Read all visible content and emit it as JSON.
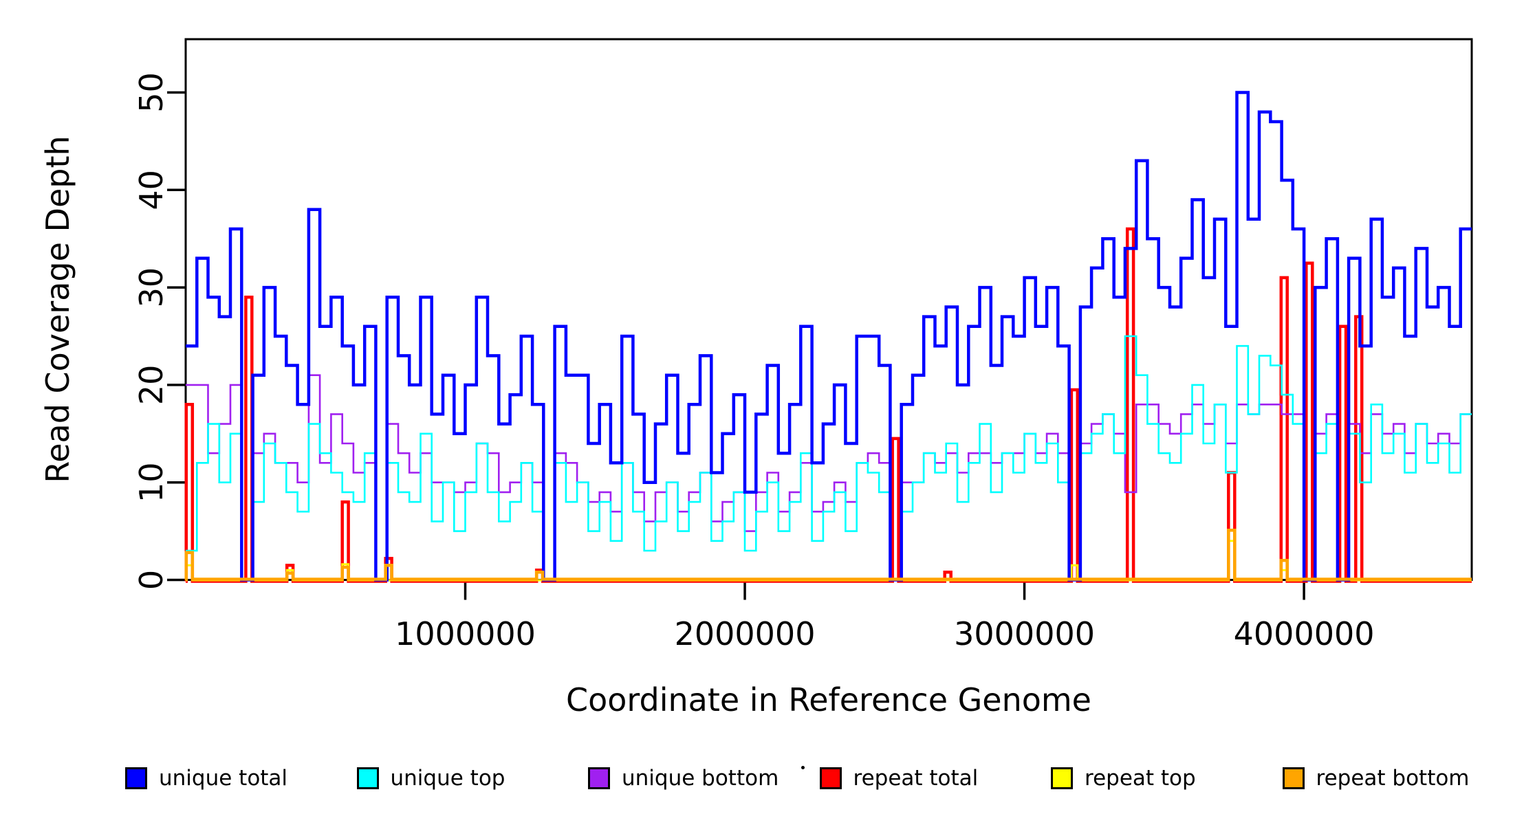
{
  "chart_data": {
    "type": "line",
    "subtype": "step-coverage",
    "title": "",
    "xlabel": "Coordinate in Reference Genome",
    "ylabel": "Read Coverage Depth",
    "xlim": [
      0,
      4600000
    ],
    "ylim": [
      0,
      55
    ],
    "grid": false,
    "legend_position": "bottom",
    "x_ticks": [
      1000000,
      2000000,
      3000000,
      4000000
    ],
    "x_tick_labels": [
      "1000000",
      "2000000",
      "3000000",
      "4000000"
    ],
    "y_ticks": [
      0,
      10,
      20,
      30,
      40,
      50
    ],
    "y_tick_labels": [
      "0",
      "10",
      "20",
      "30",
      "40",
      "50"
    ],
    "x_bin_size": 40000,
    "spike_width": 22000,
    "series": [
      {
        "name": "unique total",
        "color": "#0000FF",
        "stroke": 4.5,
        "kind": "bins",
        "values": [
          24,
          33,
          29,
          27,
          36,
          0,
          21,
          30,
          25,
          22,
          18,
          38,
          26,
          29,
          24,
          20,
          26,
          0,
          29,
          23,
          20,
          29,
          17,
          21,
          15,
          20,
          29,
          23,
          16,
          19,
          25,
          18,
          0,
          26,
          21,
          21,
          14,
          18,
          12,
          25,
          17,
          10,
          16,
          21,
          13,
          18,
          23,
          11,
          15,
          19,
          9,
          17,
          22,
          13,
          18,
          26,
          12,
          16,
          20,
          14,
          25,
          25,
          22,
          0,
          18,
          21,
          27,
          24,
          28,
          20,
          26,
          30,
          22,
          27,
          25,
          31,
          26,
          30,
          24,
          0,
          28,
          32,
          35,
          29,
          34,
          43,
          35,
          30,
          28,
          33,
          39,
          31,
          37,
          26,
          50,
          37,
          48,
          47,
          41,
          36,
          0,
          30,
          35,
          0,
          33,
          24,
          37,
          29,
          32,
          25,
          34,
          28,
          30,
          26,
          36
        ]
      },
      {
        "name": "unique top",
        "color": "#00FFFF",
        "stroke": 2.6,
        "kind": "bins",
        "values": [
          3,
          12,
          16,
          10,
          15,
          0,
          8,
          14,
          12,
          9,
          7,
          16,
          13,
          11,
          9,
          8,
          13,
          0,
          12,
          9,
          8,
          15,
          6,
          10,
          5,
          9,
          14,
          9,
          6,
          8,
          12,
          7,
          0,
          12,
          8,
          10,
          5,
          8,
          4,
          12,
          7,
          3,
          6,
          10,
          5,
          8,
          11,
          4,
          6,
          9,
          3,
          7,
          10,
          5,
          8,
          13,
          4,
          7,
          9,
          5,
          12,
          11,
          9,
          0,
          7,
          10,
          13,
          11,
          14,
          8,
          12,
          16,
          9,
          13,
          11,
          15,
          12,
          14,
          10,
          0,
          13,
          15,
          17,
          13,
          25,
          21,
          16,
          13,
          12,
          15,
          20,
          14,
          18,
          11,
          24,
          17,
          23,
          22,
          19,
          16,
          0,
          13,
          16,
          0,
          15,
          10,
          18,
          13,
          15,
          11,
          16,
          12,
          14,
          11,
          17
        ]
      },
      {
        "name": "unique bottom",
        "color": "#A020F0",
        "stroke": 2.6,
        "kind": "bins",
        "values": [
          20,
          20,
          13,
          16,
          20,
          0,
          13,
          15,
          12,
          12,
          10,
          21,
          12,
          17,
          14,
          11,
          12,
          0,
          16,
          13,
          11,
          13,
          10,
          10,
          9,
          10,
          14,
          13,
          9,
          10,
          12,
          10,
          0,
          13,
          12,
          10,
          8,
          9,
          7,
          12,
          9,
          6,
          9,
          10,
          7,
          9,
          11,
          6,
          8,
          9,
          5,
          9,
          11,
          7,
          9,
          12,
          7,
          8,
          10,
          8,
          12,
          13,
          12,
          0,
          10,
          10,
          13,
          12,
          13,
          11,
          13,
          13,
          12,
          13,
          13,
          15,
          13,
          15,
          13,
          0,
          14,
          16,
          17,
          15,
          9,
          18,
          18,
          16,
          15,
          17,
          18,
          16,
          18,
          14,
          18,
          17,
          18,
          18,
          17,
          17,
          0,
          15,
          17,
          0,
          16,
          13,
          17,
          15,
          16,
          13,
          16,
          14,
          15,
          14,
          17
        ]
      },
      {
        "name": "repeat total",
        "color": "#FF0000",
        "stroke": 4.5,
        "kind": "spikes",
        "baseline": 0,
        "spikes": [
          {
            "x": 2000,
            "v": 18
          },
          {
            "x": 215000,
            "v": 29
          },
          {
            "x": 362000,
            "v": 1.5
          },
          {
            "x": 560000,
            "v": 8
          },
          {
            "x": 715000,
            "v": 2.2
          },
          {
            "x": 1255000,
            "v": 1
          },
          {
            "x": 2528000,
            "v": 14.5
          },
          {
            "x": 2715000,
            "v": 0.8
          },
          {
            "x": 3168000,
            "v": 19.5
          },
          {
            "x": 3368000,
            "v": 36
          },
          {
            "x": 3730000,
            "v": 11
          },
          {
            "x": 3918000,
            "v": 31
          },
          {
            "x": 4008000,
            "v": 32.5
          },
          {
            "x": 4128000,
            "v": 26
          },
          {
            "x": 4185000,
            "v": 27
          }
        ]
      },
      {
        "name": "repeat top",
        "color": "#FFFF00",
        "stroke": 3,
        "kind": "spikes",
        "baseline": 0,
        "spikes": [
          {
            "x": 2000,
            "v": 1.5
          },
          {
            "x": 362000,
            "v": 1
          },
          {
            "x": 560000,
            "v": 1.6
          },
          {
            "x": 3168000,
            "v": 1.5
          },
          {
            "x": 3730000,
            "v": 4
          },
          {
            "x": 3918000,
            "v": 1
          }
        ]
      },
      {
        "name": "repeat bottom",
        "color": "#FFA500",
        "stroke": 4.5,
        "kind": "spikes",
        "baseline": 0,
        "spikes": [
          {
            "x": 2000,
            "v": 2.8
          },
          {
            "x": 362000,
            "v": 0.7
          },
          {
            "x": 560000,
            "v": 1.3
          },
          {
            "x": 715000,
            "v": 1.5
          },
          {
            "x": 1255000,
            "v": 0.8
          },
          {
            "x": 3730000,
            "v": 5.1
          },
          {
            "x": 3918000,
            "v": 2
          }
        ]
      }
    ]
  },
  "legend": {
    "items": [
      {
        "label": "unique total",
        "color": "#0000FF"
      },
      {
        "label": "unique top",
        "color": "#00FFFF"
      },
      {
        "label": "unique bottom",
        "color": "#A020F0"
      },
      {
        "label": "repeat total",
        "color": "#FF0000"
      },
      {
        "label": "repeat top",
        "color": "#FFFF00"
      },
      {
        "label": "repeat bottom",
        "color": "#FFA500"
      }
    ]
  },
  "colors": {
    "axis": "#000000",
    "background": "#FFFFFF"
  }
}
